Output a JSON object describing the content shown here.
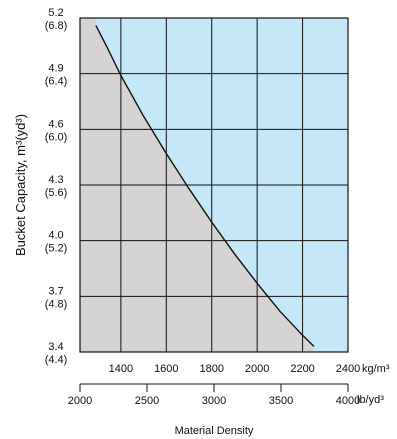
{
  "chart_data": {
    "type": "line",
    "title": "",
    "xlabel": "Material Density",
    "ylabel": "Bucket Capacity, m³(yd³)",
    "x_unit_primary": "kg/m³",
    "x_unit_secondary": "lb/yd³",
    "xlim_kg_m3": [
      1220,
      2400
    ],
    "ylim_m3": [
      3.4,
      5.2
    ],
    "x_ticks_primary": [
      1400,
      1600,
      1800,
      2000,
      2200,
      2400
    ],
    "x_ticks_secondary": [
      2000,
      2500,
      3000,
      3500,
      4000
    ],
    "x_ticks_secondary_labels": [
      "2000",
      "2500",
      "3000",
      "3500",
      "4000"
    ],
    "y_ticks": [
      {
        "value": 3.4,
        "label": "3.4",
        "sub": "(4.4)"
      },
      {
        "value": 3.7,
        "label": "3.7",
        "sub": "(4.8)"
      },
      {
        "value": 4.0,
        "label": "4.0",
        "sub": "(5.2)"
      },
      {
        "value": 4.3,
        "label": "4.3",
        "sub": "(5.6)"
      },
      {
        "value": 4.6,
        "label": "4.6",
        "sub": "(6.0)"
      },
      {
        "value": 4.9,
        "label": "4.9",
        "sub": "(6.4)"
      },
      {
        "value": 5.2,
        "label": "5.2",
        "sub": "(6.8)"
      }
    ],
    "series": [
      {
        "x": [
          1290,
          1340,
          1400,
          1500,
          1600,
          1700,
          1800,
          1900,
          2000,
          2100,
          2200,
          2250
        ],
        "y": [
          5.16,
          5.04,
          4.89,
          4.67,
          4.47,
          4.28,
          4.1,
          3.93,
          3.77,
          3.62,
          3.49,
          3.43
        ]
      }
    ],
    "region_colors": {
      "below_curve": "#d5d3d3",
      "above_curve": "#c4e8f8"
    },
    "grid": true
  }
}
